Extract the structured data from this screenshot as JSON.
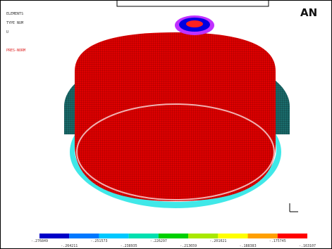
{
  "header": {
    "lines": [
      "ELEMENTS",
      "TYPE NUM",
      "U",
      "PRES-NORM"
    ],
    "logo": "AN"
  },
  "legend": {
    "colors": [
      "#0000c8",
      "#0078ff",
      "#00c8ff",
      "#00e0b0",
      "#00d000",
      "#a8e800",
      "#ffff00",
      "#ffa000",
      "#ff0000"
    ],
    "labels": [
      "-.276849",
      "-.264211",
      "-.251573",
      "-.238935",
      "-.226297",
      "-.213659",
      "-.201021",
      "-.188383",
      "-.175745",
      "-.163107"
    ]
  }
}
